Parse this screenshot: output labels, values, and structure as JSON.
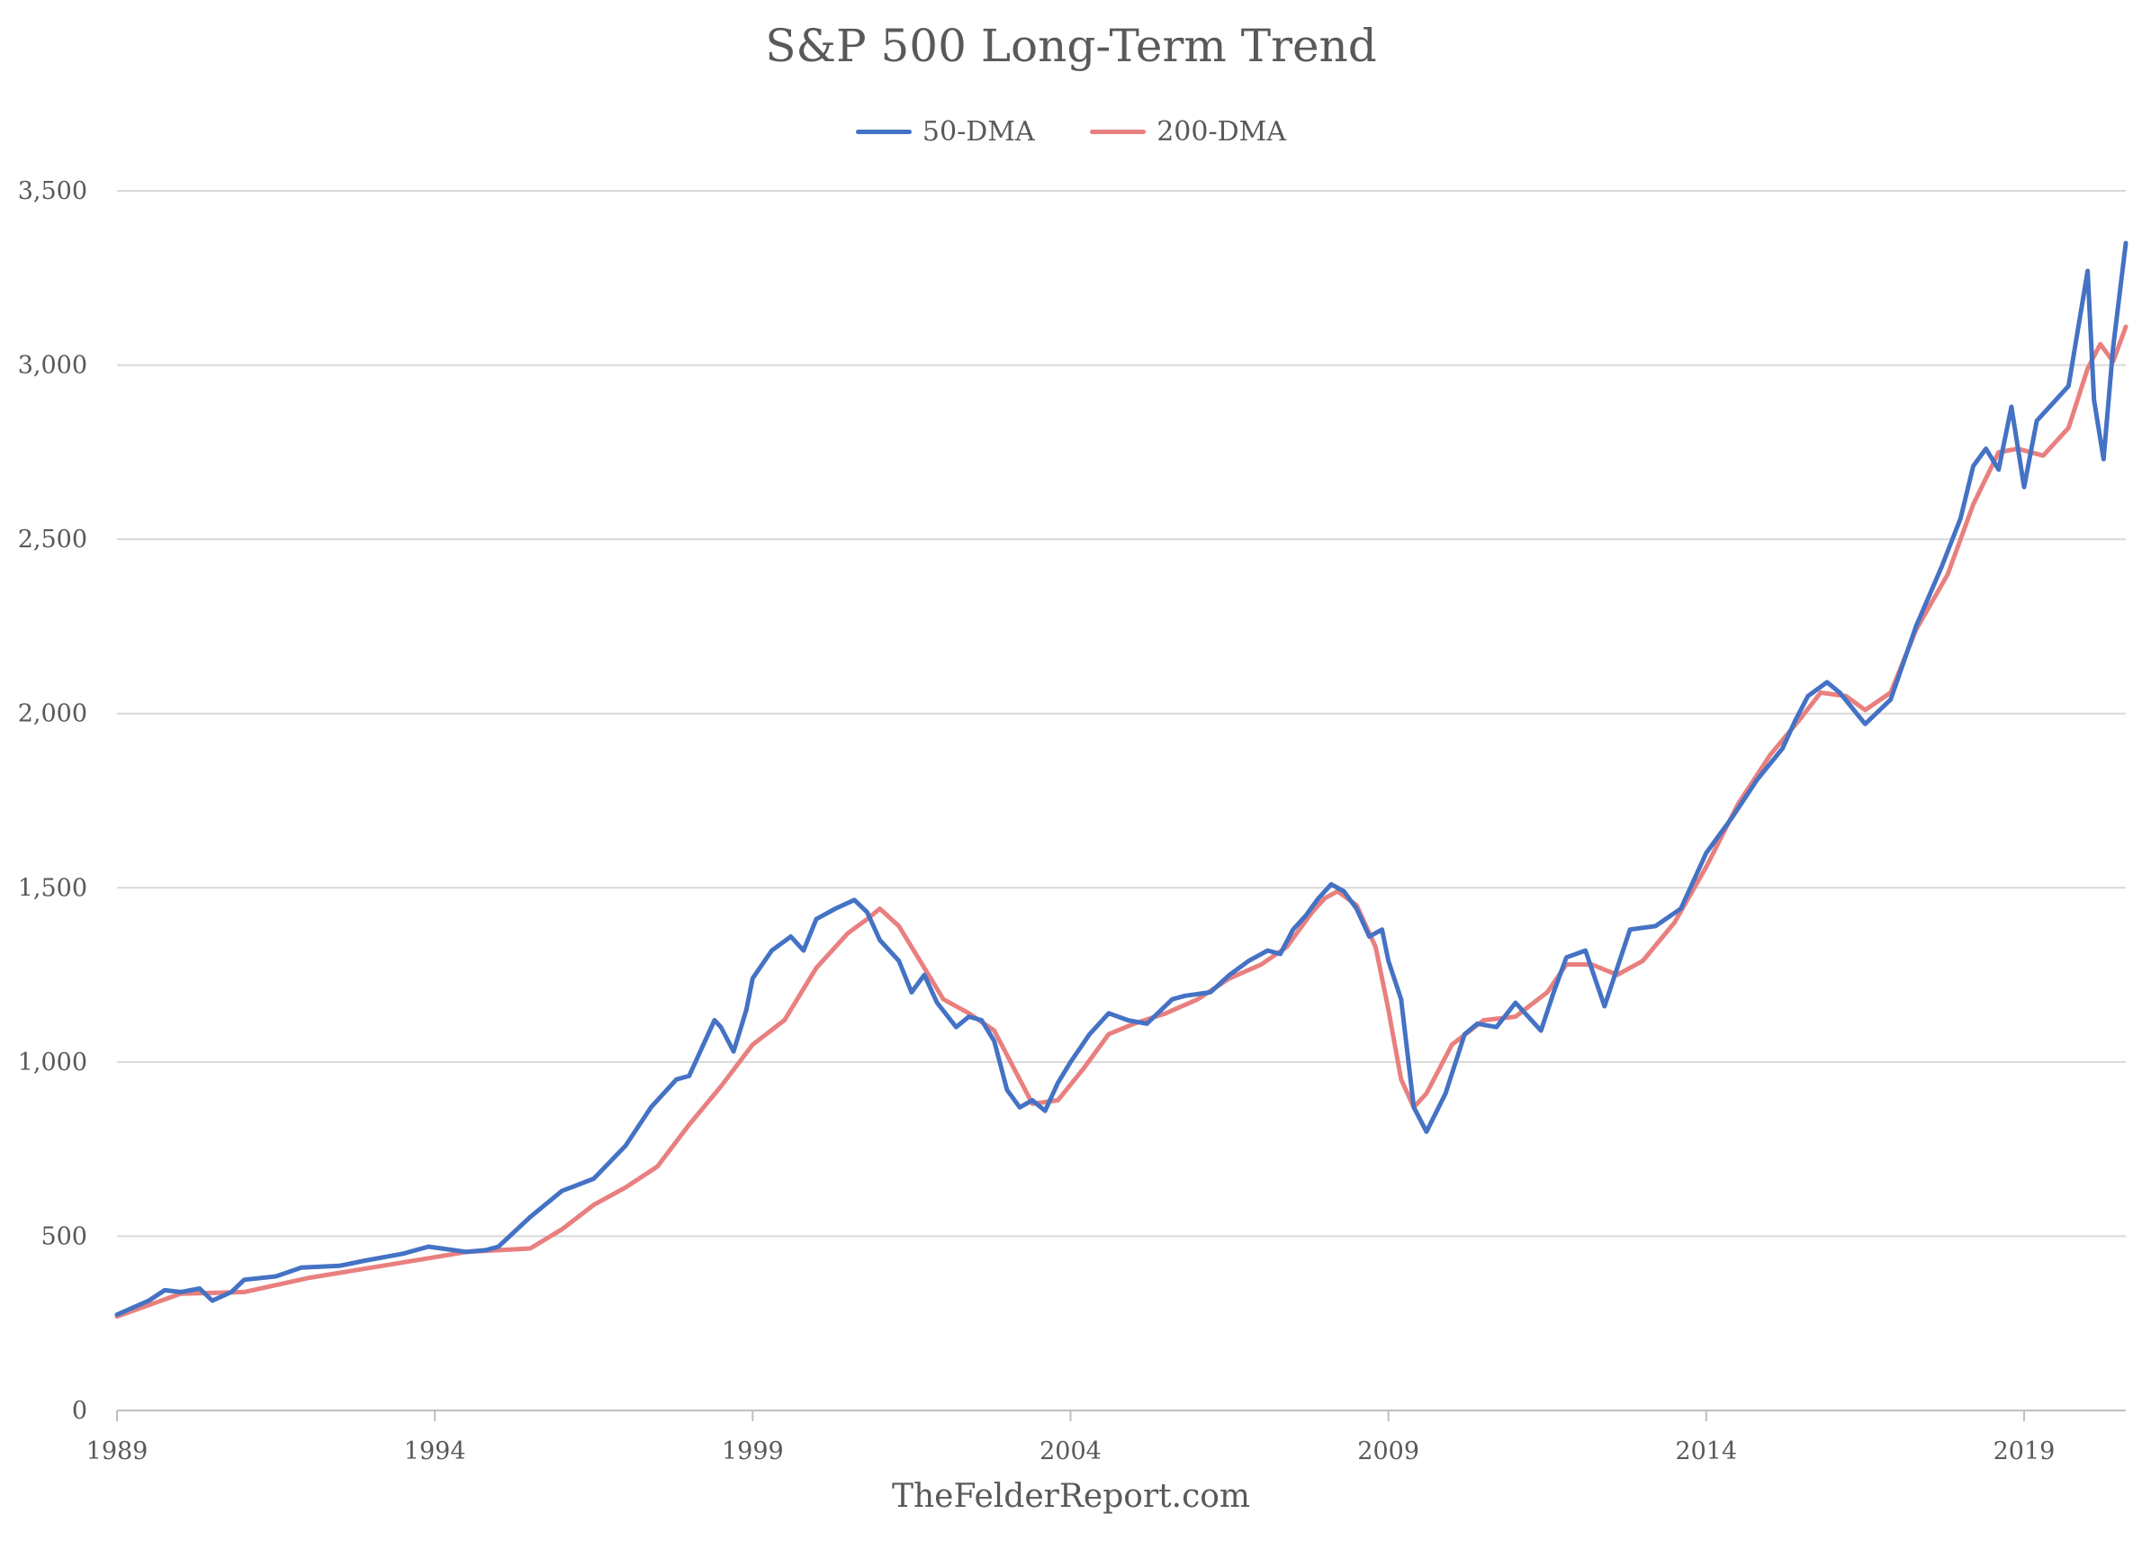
{
  "chart_data": {
    "type": "line",
    "title": "S&P 500 Long-Term Trend",
    "xlabel": "",
    "ylabel": "",
    "source": "TheFelderReport.com",
    "xlim": [
      1989,
      2020.6
    ],
    "ylim": [
      0,
      3500
    ],
    "yticks": [
      0,
      500,
      1000,
      1500,
      2000,
      2500,
      3000,
      3500
    ],
    "ytick_labels": [
      "0",
      "500",
      "1,000",
      "1,500",
      "2,000",
      "2,500",
      "3,000",
      "3,500"
    ],
    "xticks": [
      1989,
      1994,
      1999,
      2004,
      2009,
      2014,
      2019
    ],
    "xtick_labels": [
      "1989",
      "1994",
      "1999",
      "2004",
      "2009",
      "2014",
      "2019"
    ],
    "grid": true,
    "legend_position": "top",
    "series": [
      {
        "name": "50-DMA",
        "color": "#4472C4",
        "x": [
          1989.0,
          1989.5,
          1989.75,
          1990.0,
          1990.3,
          1990.5,
          1990.8,
          1991.0,
          1991.5,
          1991.9,
          1992.5,
          1992.9,
          1993.5,
          1993.9,
          1994.5,
          1994.8,
          1995.0,
          1995.5,
          1996.0,
          1996.5,
          1997.0,
          1997.4,
          1997.8,
          1998.0,
          1998.4,
          1998.5,
          1998.7,
          1998.9,
          1999.0,
          1999.3,
          1999.6,
          1999.8,
          2000.0,
          2000.3,
          2000.6,
          2000.8,
          2001.0,
          2001.3,
          2001.5,
          2001.7,
          2001.9,
          2002.2,
          2002.4,
          2002.6,
          2002.8,
          2003.0,
          2003.2,
          2003.4,
          2003.6,
          2003.8,
          2004.0,
          2004.3,
          2004.6,
          2004.9,
          2005.2,
          2005.6,
          2005.8,
          2006.2,
          2006.5,
          2006.8,
          2007.1,
          2007.3,
          2007.5,
          2007.7,
          2007.9,
          2008.1,
          2008.3,
          2008.5,
          2008.7,
          2008.9,
          2009.0,
          2009.2,
          2009.4,
          2009.6,
          2009.9,
          2010.2,
          2010.4,
          2010.7,
          2011.0,
          2011.4,
          2011.6,
          2011.8,
          2012.1,
          2012.4,
          2012.8,
          2013.2,
          2013.6,
          2014.0,
          2014.4,
          2014.8,
          2015.2,
          2015.4,
          2015.6,
          2015.9,
          2016.1,
          2016.5,
          2016.9,
          2017.3,
          2017.7,
          2018.0,
          2018.2,
          2018.4,
          2018.6,
          2018.8,
          2019.0,
          2019.2,
          2019.5,
          2019.7,
          2020.0,
          2020.1,
          2020.25,
          2020.4,
          2020.6
        ],
        "values": [
          275,
          315,
          345,
          340,
          350,
          315,
          340,
          375,
          385,
          410,
          415,
          430,
          450,
          470,
          455,
          460,
          470,
          555,
          630,
          665,
          760,
          870,
          950,
          960,
          1120,
          1100,
          1030,
          1150,
          1240,
          1320,
          1360,
          1320,
          1410,
          1440,
          1465,
          1430,
          1350,
          1290,
          1200,
          1250,
          1170,
          1100,
          1130,
          1120,
          1060,
          920,
          870,
          890,
          860,
          940,
          1000,
          1080,
          1140,
          1120,
          1110,
          1180,
          1190,
          1200,
          1250,
          1290,
          1320,
          1310,
          1380,
          1420,
          1470,
          1510,
          1490,
          1440,
          1360,
          1380,
          1290,
          1180,
          870,
          800,
          910,
          1080,
          1110,
          1100,
          1170,
          1090,
          1200,
          1300,
          1320,
          1160,
          1380,
          1390,
          1440,
          1600,
          1700,
          1810,
          1900,
          1980,
          2050,
          2090,
          2060,
          1970,
          2040,
          2250,
          2420,
          2560,
          2710,
          2760,
          2700,
          2880,
          2650,
          2840,
          2900,
          2940,
          3270,
          2900,
          2730,
          3050,
          3350
        ]
      },
      {
        "name": "200-DMA",
        "color": "#E8807F",
        "x": [
          1989.0,
          1990.0,
          1991.0,
          1992.0,
          1993.0,
          1994.0,
          1994.5,
          1995.0,
          1995.5,
          1996.0,
          1996.5,
          1997.0,
          1997.5,
          1998.0,
          1998.5,
          1999.0,
          1999.5,
          2000.0,
          2000.5,
          2000.8,
          2001.0,
          2001.3,
          2001.6,
          2002.0,
          2002.4,
          2002.8,
          2003.2,
          2003.4,
          2003.8,
          2004.2,
          2004.6,
          2005.0,
          2005.5,
          2006.0,
          2006.5,
          2007.0,
          2007.4,
          2007.8,
          2008.0,
          2008.2,
          2008.5,
          2008.8,
          2009.0,
          2009.2,
          2009.4,
          2009.6,
          2010.0,
          2010.5,
          2011.0,
          2011.5,
          2011.8,
          2012.2,
          2012.6,
          2013.0,
          2013.5,
          2014.0,
          2014.5,
          2015.0,
          2015.5,
          2015.8,
          2016.2,
          2016.5,
          2016.9,
          2017.3,
          2017.8,
          2018.2,
          2018.6,
          2018.9,
          2019.3,
          2019.7,
          2020.0,
          2020.2,
          2020.4,
          2020.6
        ],
        "values": [
          270,
          335,
          340,
          380,
          410,
          440,
          455,
          460,
          465,
          520,
          590,
          640,
          700,
          820,
          930,
          1050,
          1120,
          1270,
          1370,
          1410,
          1440,
          1390,
          1300,
          1180,
          1140,
          1090,
          950,
          880,
          890,
          980,
          1080,
          1110,
          1140,
          1180,
          1240,
          1280,
          1330,
          1430,
          1470,
          1490,
          1450,
          1330,
          1150,
          950,
          870,
          910,
          1050,
          1120,
          1130,
          1200,
          1280,
          1280,
          1250,
          1290,
          1400,
          1560,
          1740,
          1880,
          1990,
          2060,
          2050,
          2010,
          2060,
          2240,
          2400,
          2600,
          2750,
          2760,
          2740,
          2820,
          2990,
          3060,
          3010,
          3110
        ]
      }
    ]
  }
}
